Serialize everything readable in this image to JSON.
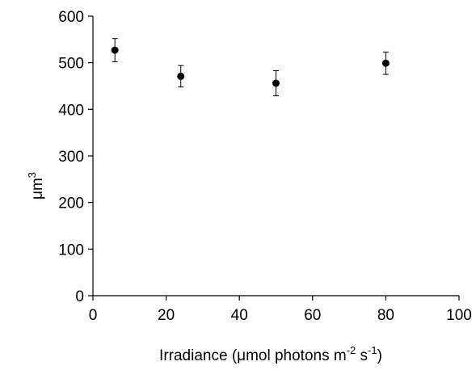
{
  "chart_data": {
    "type": "scatter",
    "title": "",
    "xlabel": {
      "main": "Irradiance (μmol photons m",
      "sup1": "-2",
      "mid": " s",
      "sup2": "-1",
      "end": ")"
    },
    "ylabel": {
      "main": "μm",
      "sup": "3"
    },
    "xlim": [
      0,
      100
    ],
    "ylim": [
      0,
      600
    ],
    "xticks": [
      0,
      20,
      40,
      60,
      80,
      100
    ],
    "yticks": [
      0,
      100,
      200,
      300,
      400,
      500,
      600
    ],
    "grid": false,
    "legend": "none",
    "series": [
      {
        "points": [
          {
            "x": 6,
            "y": 527,
            "err_low": 25,
            "err_high": 25
          },
          {
            "x": 24,
            "y": 471,
            "err_low": 23,
            "err_high": 23
          },
          {
            "x": 50,
            "y": 456,
            "err_low": 27,
            "err_high": 27
          },
          {
            "x": 80,
            "y": 499,
            "err_low": 24,
            "err_high": 24
          }
        ],
        "color": "#000000"
      }
    ]
  }
}
